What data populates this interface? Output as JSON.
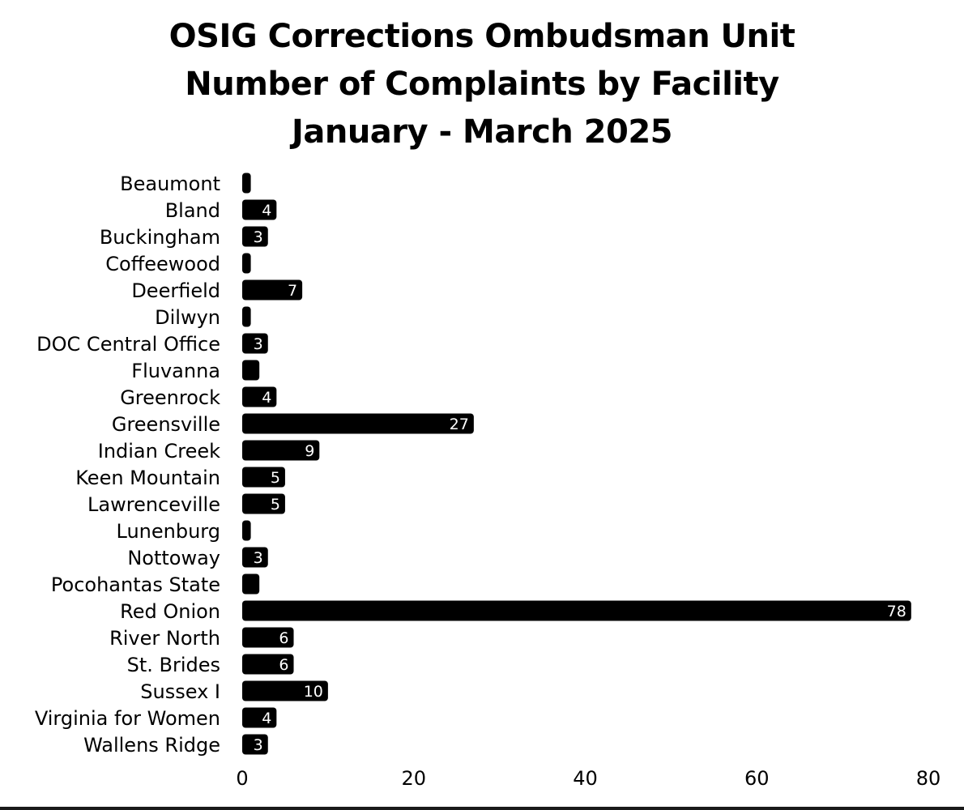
{
  "chart_data": {
    "type": "bar",
    "orientation": "horizontal",
    "title": [
      "OSIG Corrections Ombudsman Unit",
      "Number of Complaints by Facility",
      "January - March 2025"
    ],
    "xlabel": "",
    "ylabel": "",
    "xlim": [
      0,
      80
    ],
    "x_ticks": [
      0,
      20,
      40,
      60,
      80
    ],
    "grid": false,
    "legend": "none",
    "bar_color": "#000000",
    "label_color": "#ffffff",
    "categories": [
      "Beaumont",
      "Bland",
      "Buckingham",
      "Coffeewood",
      "Deerfield",
      "Dilwyn",
      "DOC Central Office",
      "Fluvanna",
      "Greenrock",
      "Greensville",
      "Indian Creek",
      "Keen Mountain",
      "Lawrenceville",
      "Lunenburg",
      "Nottoway",
      "Pocohantas State",
      "Red Onion",
      "River North",
      "St. Brides",
      "Sussex I",
      "Virginia for Women",
      "Wallens Ridge"
    ],
    "values": [
      1,
      4,
      3,
      1,
      7,
      1,
      3,
      2,
      4,
      27,
      9,
      5,
      5,
      1,
      3,
      2,
      78,
      6,
      6,
      10,
      4,
      3
    ],
    "data_labels": [
      "",
      "4",
      "3",
      "",
      "7",
      "",
      "3",
      "",
      "4",
      "27",
      "9",
      "5",
      "5",
      "",
      "3",
      "",
      "78",
      "6",
      "6",
      "10",
      "4",
      "3"
    ]
  }
}
